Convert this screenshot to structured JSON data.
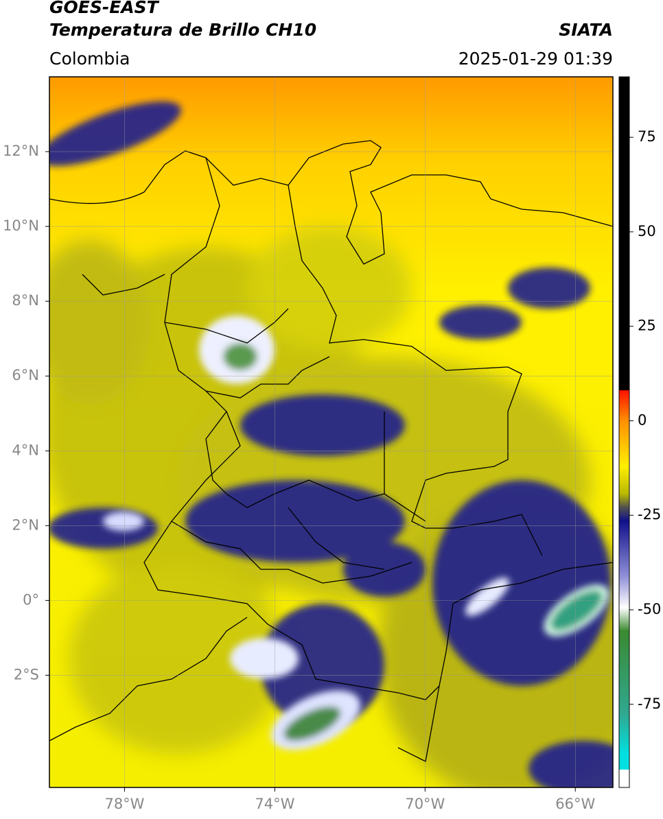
{
  "header": {
    "title": "GOES-EAST",
    "subtitle": "Temperatura de Brillo CH10",
    "source": "SIATA",
    "region": "Colombia",
    "datetime": "2025-01-29 01:39"
  },
  "chart_data": {
    "type": "map",
    "xlim": [
      -80,
      -65
    ],
    "ylim": [
      -5,
      14
    ],
    "xticks": [
      {
        "value": -78,
        "label": "78°W"
      },
      {
        "value": -74,
        "label": "74°W"
      },
      {
        "value": -70,
        "label": "70°W"
      },
      {
        "value": -66,
        "label": "66°W"
      }
    ],
    "yticks": [
      {
        "value": 12,
        "label": "12°N"
      },
      {
        "value": 10,
        "label": "10°N"
      },
      {
        "value": 8,
        "label": "8°N"
      },
      {
        "value": 6,
        "label": "6°N"
      },
      {
        "value": 4,
        "label": "4°N"
      },
      {
        "value": 2,
        "label": "2°N"
      },
      {
        "value": 0,
        "label": "0°"
      },
      {
        "value": -2,
        "label": "2°S"
      }
    ],
    "grid": true,
    "colorbar": {
      "lim": [
        -97,
        91
      ],
      "ticks": [
        75,
        50,
        25,
        0,
        -25,
        -50,
        -75
      ]
    }
  }
}
